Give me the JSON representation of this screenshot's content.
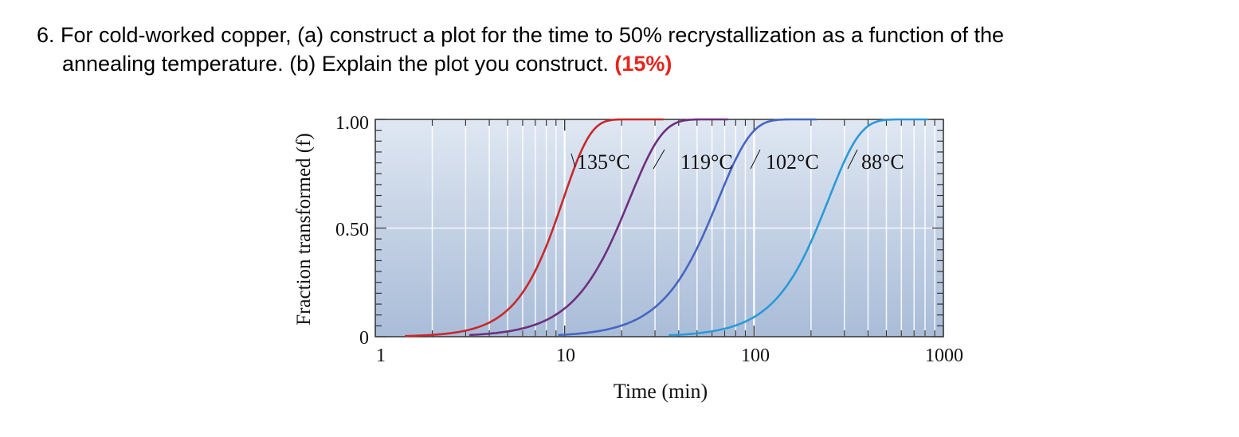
{
  "question": {
    "line1": "6. For cold-worked copper, (a) construct a plot for the time to 50% recrystallization as a function of the",
    "line2": "annealing temperature. (b) Explain the plot you construct.",
    "score": "(15%)"
  },
  "chart_data": {
    "type": "line",
    "xscale": "log",
    "xlim": [
      1,
      1000
    ],
    "ylim": [
      0,
      1
    ],
    "xlabel": "Time (min)",
    "ylabel": "Fraction transformed (f)",
    "x_ticks": [
      "1",
      "10",
      "100",
      "1000"
    ],
    "y_ticks": [
      "0",
      "0.50",
      "1.00"
    ],
    "grid": true,
    "series": [
      {
        "name": "135°C",
        "color": "#c8282c",
        "t50": 8.7,
        "n": 3.0
      },
      {
        "name": "119°C",
        "color": "#6e2f7e",
        "t50": 19,
        "n": 2.5
      },
      {
        "name": "102°C",
        "color": "#4766c0",
        "t50": 56,
        "n": 2.5
      },
      {
        "name": "88°C",
        "color": "#2a9ad8",
        "t50": 215,
        "n": 2.6
      }
    ]
  }
}
